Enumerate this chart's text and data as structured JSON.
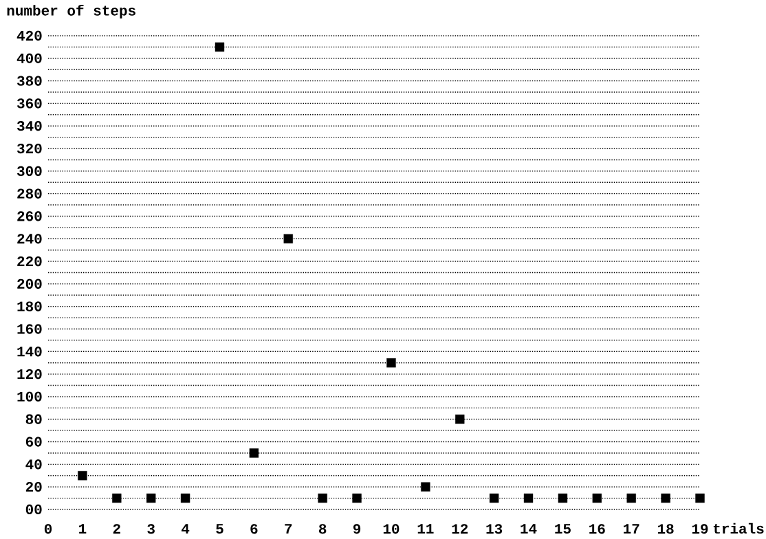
{
  "chart_data": {
    "type": "scatter",
    "xlabel": "trials",
    "ylabel": "number of steps",
    "x": [
      1,
      2,
      3,
      4,
      5,
      6,
      7,
      8,
      9,
      10,
      11,
      12,
      13,
      14,
      15,
      16,
      17,
      18,
      19
    ],
    "values": [
      30,
      10,
      10,
      10,
      410,
      50,
      240,
      10,
      10,
      130,
      20,
      80,
      10,
      10,
      10,
      10,
      10,
      10,
      10
    ],
    "color": "#000000",
    "marker": "square",
    "grid": "y",
    "xlim": [
      0,
      19
    ],
    "ylim": [
      0,
      420
    ],
    "xticks": [
      0,
      1,
      2,
      3,
      4,
      5,
      6,
      7,
      8,
      9,
      10,
      11,
      12,
      13,
      14,
      15,
      16,
      17,
      18,
      19
    ],
    "yticks": [
      {
        "value": 0,
        "label": "00"
      },
      {
        "value": 10,
        "label": null
      },
      20,
      {
        "value": 30,
        "label": null
      },
      40,
      {
        "value": 50,
        "label": null
      },
      60,
      {
        "value": 70,
        "label": null
      },
      80,
      {
        "value": 90,
        "label": null
      },
      100,
      {
        "value": 110,
        "label": null
      },
      120,
      {
        "value": 130,
        "label": null
      },
      140,
      {
        "value": 150,
        "label": null
      },
      160,
      {
        "value": 170,
        "label": null
      },
      180,
      {
        "value": 190,
        "label": null
      },
      200,
      {
        "value": 210,
        "label": null
      },
      220,
      {
        "value": 230,
        "label": null
      },
      240,
      {
        "value": 250,
        "label": null
      },
      260,
      {
        "value": 270,
        "label": null
      },
      280,
      {
        "value": 290,
        "label": null
      },
      300,
      {
        "value": 310,
        "label": null
      },
      320,
      {
        "value": 330,
        "label": null
      },
      340,
      {
        "value": 350,
        "label": null
      },
      360,
      {
        "value": 370,
        "label": null
      },
      380,
      {
        "value": 390,
        "label": null
      },
      400,
      {
        "value": 410,
        "label": null
      },
      420
    ]
  }
}
